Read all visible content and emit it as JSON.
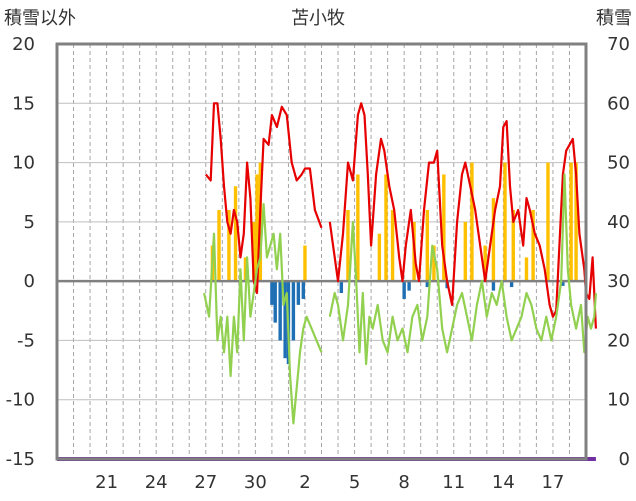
{
  "chart_data": {
    "type": "bar",
    "title": "苫小牧",
    "left_axis_label": "積雪以外",
    "right_axis_label": "積雪",
    "left_ylim": [
      -15,
      20
    ],
    "left_yticks": [
      "20",
      "15",
      "10",
      "5",
      "0",
      "-5",
      "-10",
      "-15"
    ],
    "right_ylim": [
      0,
      70
    ],
    "right_yticks": [
      "70",
      "60",
      "50",
      "40",
      "30",
      "20",
      "10",
      "0"
    ],
    "x_ticks": [
      {
        "label": "21",
        "day": 3
      },
      {
        "label": "24",
        "day": 6
      },
      {
        "label": "27",
        "day": 9
      },
      {
        "label": "30",
        "day": 12
      },
      {
        "label": "2",
        "day": 15
      },
      {
        "label": "5",
        "day": 18
      },
      {
        "label": "8",
        "day": 21
      },
      {
        "label": "11",
        "day": 24
      },
      {
        "label": "14",
        "day": 27
      },
      {
        "label": "17",
        "day": 30
      }
    ],
    "x_range_days": [
      0,
      32
    ],
    "grid": "vertical dashed daily, horizontal solid",
    "colors": {
      "precip_bar": "#ffc000",
      "negative_bar": "#1f6fb4",
      "max_line": "#e60000",
      "min_line": "#92d050",
      "snow_line": "#7030a0",
      "zero_line": "#808080",
      "frame": "#808080"
    },
    "series": [
      {
        "name": "",
        "kind": "bars",
        "axis": "left",
        "color_key": "precip_bar",
        "points": [
          [
            9.4,
            3
          ],
          [
            9.8,
            6
          ],
          [
            10.4,
            6
          ],
          [
            10.8,
            8
          ],
          [
            11.4,
            2
          ],
          [
            11.9,
            5
          ],
          [
            12.1,
            9
          ],
          [
            12.3,
            10
          ],
          [
            15.0,
            3
          ],
          [
            17.6,
            6
          ],
          [
            18.2,
            9
          ],
          [
            19.5,
            4
          ],
          [
            19.9,
            9
          ],
          [
            20.3,
            6
          ],
          [
            21.6,
            5
          ],
          [
            22.4,
            6
          ],
          [
            22.8,
            3
          ],
          [
            23.4,
            9
          ],
          [
            24.7,
            5
          ],
          [
            25.1,
            10
          ],
          [
            25.9,
            3
          ],
          [
            26.4,
            7
          ],
          [
            27.1,
            10
          ],
          [
            27.6,
            6
          ],
          [
            28.4,
            2
          ],
          [
            28.8,
            6
          ],
          [
            29.7,
            10
          ],
          [
            31.1,
            10
          ],
          [
            31.4,
            10
          ]
        ]
      },
      {
        "name": "",
        "kind": "bars",
        "axis": "left",
        "color_key": "negative_bar",
        "points": [
          [
            13.0,
            -2
          ],
          [
            13.2,
            -3.5
          ],
          [
            13.5,
            -5
          ],
          [
            13.8,
            -6.5
          ],
          [
            14.0,
            -7
          ],
          [
            14.3,
            -5
          ],
          [
            14.6,
            -2
          ],
          [
            14.9,
            -1.5
          ],
          [
            17.2,
            -1
          ],
          [
            21.0,
            -1.5
          ],
          [
            21.3,
            -0.8
          ],
          [
            22.4,
            -0.5
          ],
          [
            23.6,
            -0.6
          ],
          [
            26.4,
            -0.8
          ],
          [
            27.5,
            -0.5
          ],
          [
            30.6,
            -0.4
          ]
        ]
      },
      {
        "name": "",
        "kind": "line",
        "axis": "left",
        "color_key": "max_line",
        "segments": [
          [
            [
              9.0,
              9
            ],
            [
              9.3,
              8.5
            ],
            [
              9.5,
              15
            ],
            [
              9.7,
              15
            ],
            [
              9.9,
              12
            ],
            [
              10.1,
              8
            ],
            [
              10.3,
              5
            ],
            [
              10.5,
              4
            ],
            [
              10.7,
              6
            ],
            [
              10.9,
              5
            ],
            [
              11.1,
              2
            ],
            [
              11.3,
              4
            ],
            [
              11.5,
              10
            ],
            [
              11.7,
              7
            ],
            [
              11.9,
              0
            ],
            [
              12.1,
              -1
            ],
            [
              12.3,
              6
            ],
            [
              12.5,
              12
            ],
            [
              12.8,
              11.5
            ],
            [
              13.0,
              14
            ],
            [
              13.3,
              13
            ],
            [
              13.6,
              14.7
            ],
            [
              13.9,
              14
            ],
            [
              14.2,
              10
            ],
            [
              14.5,
              8.5
            ],
            [
              14.8,
              9
            ],
            [
              15.0,
              9.5
            ],
            [
              15.3,
              9.5
            ],
            [
              15.6,
              6
            ],
            [
              16.0,
              4.5
            ]
          ],
          [
            [
              16.5,
              5
            ],
            [
              17.0,
              0
            ],
            [
              17.3,
              4
            ],
            [
              17.6,
              10
            ],
            [
              17.9,
              8.5
            ],
            [
              18.2,
              14
            ],
            [
              18.4,
              15
            ],
            [
              18.6,
              14
            ],
            [
              18.8,
              9
            ],
            [
              19.0,
              3
            ],
            [
              19.3,
              9
            ],
            [
              19.6,
              12
            ],
            [
              19.8,
              11
            ],
            [
              20.1,
              8
            ],
            [
              20.4,
              6
            ],
            [
              20.7,
              2
            ],
            [
              20.9,
              0
            ],
            [
              21.1,
              3
            ],
            [
              21.4,
              6
            ],
            [
              21.7,
              1.5
            ],
            [
              21.9,
              0
            ],
            [
              22.2,
              6
            ],
            [
              22.5,
              10
            ],
            [
              22.8,
              10
            ],
            [
              23.0,
              11
            ],
            [
              23.3,
              3
            ],
            [
              23.6,
              0
            ],
            [
              23.9,
              -2
            ],
            [
              24.2,
              5
            ],
            [
              24.5,
              9
            ],
            [
              24.7,
              10
            ],
            [
              25.0,
              8
            ],
            [
              25.3,
              6
            ],
            [
              25.6,
              3
            ],
            [
              25.9,
              0
            ],
            [
              26.2,
              3
            ],
            [
              26.5,
              6
            ],
            [
              26.8,
              8
            ],
            [
              27.0,
              13
            ],
            [
              27.2,
              13.5
            ],
            [
              27.4,
              8
            ],
            [
              27.6,
              5
            ],
            [
              27.9,
              6
            ],
            [
              28.2,
              3
            ],
            [
              28.4,
              7
            ],
            [
              28.6,
              6
            ],
            [
              28.9,
              4
            ],
            [
              29.2,
              3
            ],
            [
              29.5,
              1
            ],
            [
              29.8,
              -2
            ],
            [
              30.0,
              -3
            ],
            [
              30.2,
              -2.5
            ],
            [
              30.6,
              9
            ],
            [
              30.8,
              11
            ],
            [
              31.0,
              11.5
            ],
            [
              31.2,
              12
            ],
            [
              31.4,
              9
            ],
            [
              31.6,
              4
            ],
            [
              31.9,
              1
            ],
            [
              32.0,
              -1
            ],
            [
              32.2,
              -1.5
            ],
            [
              32.4,
              2
            ],
            [
              32.6,
              -4
            ]
          ]
        ]
      },
      {
        "name": "",
        "kind": "line",
        "axis": "left",
        "color_key": "min_line",
        "segments": [
          [
            [
              8.9,
              -1
            ],
            [
              9.2,
              -3
            ],
            [
              9.5,
              4
            ],
            [
              9.7,
              -5
            ],
            [
              9.9,
              -3
            ],
            [
              10.1,
              -6
            ],
            [
              10.3,
              -3
            ],
            [
              10.5,
              -8
            ],
            [
              10.7,
              -3
            ],
            [
              10.9,
              -6
            ],
            [
              11.1,
              1
            ],
            [
              11.3,
              -5
            ],
            [
              11.5,
              2
            ],
            [
              11.7,
              -3
            ],
            [
              11.9,
              -1
            ],
            [
              12.1,
              1
            ],
            [
              12.3,
              2
            ],
            [
              12.5,
              6.5
            ],
            [
              12.7,
              2
            ],
            [
              12.9,
              3
            ],
            [
              13.1,
              4
            ],
            [
              13.3,
              1
            ],
            [
              13.5,
              4
            ],
            [
              13.7,
              -2
            ],
            [
              13.9,
              -1
            ],
            [
              14.1,
              -8
            ],
            [
              14.3,
              -12
            ],
            [
              14.5,
              -9
            ],
            [
              14.7,
              -6
            ],
            [
              14.9,
              -4
            ],
            [
              15.1,
              -3
            ],
            [
              15.4,
              -4
            ],
            [
              15.7,
              -5
            ],
            [
              16.0,
              -6
            ]
          ],
          [
            [
              16.5,
              -3
            ],
            [
              16.8,
              -1
            ],
            [
              17.0,
              -2
            ],
            [
              17.3,
              -5
            ],
            [
              17.6,
              -2
            ],
            [
              17.9,
              5
            ],
            [
              18.1,
              0
            ],
            [
              18.3,
              -6
            ],
            [
              18.5,
              -1
            ],
            [
              18.7,
              -7
            ],
            [
              18.9,
              -3
            ],
            [
              19.1,
              -4
            ],
            [
              19.4,
              -2
            ],
            [
              19.7,
              -5
            ],
            [
              20.0,
              -6
            ],
            [
              20.3,
              -3
            ],
            [
              20.6,
              -5
            ],
            [
              20.9,
              -4
            ],
            [
              21.2,
              -6
            ],
            [
              21.5,
              -3
            ],
            [
              21.8,
              -2
            ],
            [
              22.1,
              -5
            ],
            [
              22.4,
              -3
            ],
            [
              22.7,
              3
            ],
            [
              23.0,
              1
            ],
            [
              23.3,
              -4
            ],
            [
              23.6,
              -6
            ],
            [
              23.9,
              -4
            ],
            [
              24.2,
              -2
            ],
            [
              24.5,
              -1
            ],
            [
              24.8,
              -3
            ],
            [
              25.1,
              -5
            ],
            [
              25.4,
              -2
            ],
            [
              25.7,
              0
            ],
            [
              26.0,
              -3
            ],
            [
              26.3,
              -1
            ],
            [
              26.6,
              -2
            ],
            [
              26.9,
              0
            ],
            [
              27.2,
              -3
            ],
            [
              27.5,
              -5
            ],
            [
              27.8,
              -4
            ],
            [
              28.1,
              -3
            ],
            [
              28.4,
              -1
            ],
            [
              28.7,
              -2
            ],
            [
              29.0,
              -4
            ],
            [
              29.3,
              -5
            ],
            [
              29.6,
              -3
            ],
            [
              29.9,
              -5
            ],
            [
              30.2,
              -3
            ],
            [
              30.5,
              0
            ],
            [
              30.7,
              9
            ],
            [
              30.9,
              1
            ],
            [
              31.1,
              -2
            ],
            [
              31.4,
              -4
            ],
            [
              31.7,
              -2
            ],
            [
              31.9,
              -6
            ],
            [
              32.1,
              -3
            ],
            [
              32.3,
              -4
            ],
            [
              32.5,
              -3
            ],
            [
              32.6,
              -1
            ]
          ]
        ]
      },
      {
        "name": "",
        "kind": "line",
        "axis": "right",
        "color_key": "snow_line",
        "segments": [
          [
            [
              0,
              0
            ],
            [
              32.6,
              0
            ]
          ]
        ]
      }
    ]
  }
}
